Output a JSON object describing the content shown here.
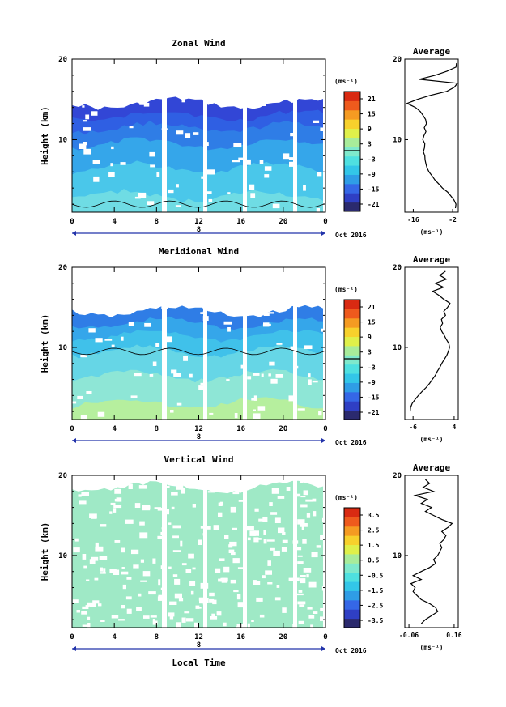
{
  "panels": [
    {
      "title": "Zonal Wind",
      "ylabel": "Height (km)",
      "ylim": [
        1,
        20
      ],
      "yticks": [
        "20",
        "10"
      ],
      "xticks": [
        "0",
        "4",
        "8",
        "12",
        "16",
        "20",
        "0"
      ],
      "day_label": "8",
      "date_label": "Oct 2016",
      "colorbar_unit": "(ms⁻¹)",
      "colorbar_ticks": [
        "21",
        "15",
        "9",
        "3",
        "-3",
        "-9",
        "-15",
        "-21"
      ],
      "profile": {
        "title": "Average",
        "xlabel": "(ms⁻¹)",
        "xticks": [
          "-16",
          "-2"
        ],
        "yticks": [
          "20",
          "10"
        ],
        "xlim": [
          -19,
          0
        ],
        "heights": [
          1.5,
          2,
          2.5,
          3,
          3.5,
          4,
          4.5,
          5,
          5.5,
          6,
          6.5,
          7,
          7.5,
          8,
          8.5,
          9,
          9.5,
          10,
          10.5,
          11,
          11.5,
          12,
          12.5,
          13,
          13.5,
          14,
          14.5,
          15,
          15.5,
          16,
          16.5,
          17,
          17.5,
          18,
          18.5,
          19,
          19.5
        ],
        "values": [
          -1,
          -0.8,
          -1.5,
          -2.6,
          -3.8,
          -5.6,
          -6.9,
          -8.3,
          -9.3,
          -10.4,
          -11.1,
          -11.5,
          -11.8,
          -11.9,
          -12.4,
          -12.0,
          -11.9,
          -12.6,
          -12.2,
          -11.5,
          -12.1,
          -11.3,
          -11.6,
          -12.5,
          -13.5,
          -15.2,
          -18.2,
          -14.5,
          -10.0,
          -4.1,
          -1.4,
          -0.3,
          -13.9,
          -8.2,
          -4.0,
          -0.8,
          -0.6
        ]
      }
    },
    {
      "title": "Meridional Wind",
      "ylabel": "Height (km)",
      "ylim": [
        1,
        20
      ],
      "yticks": [
        "20",
        "10"
      ],
      "xticks": [
        "0",
        "4",
        "8",
        "12",
        "16",
        "20",
        "0"
      ],
      "day_label": "8",
      "date_label": "Oct 2016",
      "colorbar_unit": "(ms⁻¹)",
      "colorbar_ticks": [
        "21",
        "15",
        "9",
        "3",
        "-3",
        "-9",
        "-15",
        "-21"
      ],
      "profile": {
        "title": "Average",
        "xlabel": "(ms⁻¹)",
        "xticks": [
          "-6",
          "4"
        ],
        "yticks": [
          "20",
          "10"
        ],
        "xlim": [
          -8,
          5
        ],
        "heights": [
          2,
          2.5,
          3,
          3.5,
          4,
          4.5,
          5,
          5.5,
          6,
          6.5,
          7,
          7.5,
          8,
          8.5,
          9,
          9.5,
          10,
          10.5,
          11,
          11.5,
          12,
          12.5,
          13,
          13.5,
          14,
          14.5,
          15,
          15.5,
          16,
          16.5,
          17,
          17.5,
          18,
          18.5,
          19,
          19.5
        ],
        "values": [
          -6.7,
          -6.6,
          -6.2,
          -5.5,
          -4.7,
          -3.8,
          -2.8,
          -2.0,
          -1.3,
          -0.6,
          -0.1,
          0.5,
          1.0,
          1.6,
          2.2,
          2.6,
          2.9,
          2.7,
          2.1,
          1.6,
          1.0,
          0.6,
          1.2,
          0.9,
          1.9,
          1.5,
          2.4,
          3.0,
          1.5,
          0.3,
          -1.2,
          1.4,
          -0.6,
          2.1,
          0.5,
          1.9
        ]
      }
    },
    {
      "title": "Vertical Wind",
      "ylabel": "Height (km)",
      "ylim": [
        1,
        20
      ],
      "yticks": [
        "20",
        "10"
      ],
      "xticks": [
        "0",
        "4",
        "8",
        "12",
        "16",
        "20",
        "0"
      ],
      "day_label": "8",
      "date_label": "Oct 2016",
      "xlabel": "Local Time",
      "colorbar_unit": "(ms⁻¹)",
      "colorbar_ticks": [
        "3.5",
        "2.5",
        "1.5",
        "0.5",
        "-0.5",
        "-1.5",
        "-2.5",
        "-3.5"
      ],
      "profile": {
        "title": "Average",
        "xlabel": "(ms⁻¹)",
        "xticks": [
          "-0.06",
          "0.16"
        ],
        "yticks": [
          "20",
          "10"
        ],
        "xlim": [
          -0.08,
          0.18
        ],
        "heights": [
          1.5,
          2,
          2.5,
          3,
          3.5,
          4,
          4.5,
          5,
          5.5,
          6,
          6.5,
          7,
          7.5,
          8,
          8.5,
          9,
          9.5,
          10,
          10.5,
          11,
          11.5,
          12,
          12.5,
          13,
          13.5,
          14,
          14.5,
          15,
          15.5,
          16,
          16.5,
          17,
          17.5,
          18,
          18.5,
          19,
          19.5
        ],
        "values": [
          0.0,
          0.02,
          0.05,
          0.08,
          0.07,
          0.04,
          0.0,
          -0.02,
          -0.04,
          -0.03,
          -0.05,
          0.0,
          -0.04,
          0.0,
          0.04,
          0.07,
          0.06,
          0.08,
          0.09,
          0.1,
          0.09,
          0.11,
          0.12,
          0.1,
          0.13,
          0.15,
          0.1,
          0.06,
          0.02,
          0.05,
          0.0,
          0.03,
          -0.03,
          0.06,
          0.01,
          0.04,
          0.02
        ]
      }
    }
  ],
  "colors": {
    "colorbar": [
      "#2b2a6e",
      "#2f3fc4",
      "#3567e6",
      "#2f9de6",
      "#33c6e8",
      "#4fe0e0",
      "#7fe9cc",
      "#a8ec9a",
      "#dff04a",
      "#f7d12c",
      "#f59b22",
      "#ee5a1d",
      "#d92a12"
    ],
    "zonal_layers": [
      "#3246d6",
      "#2f5fe3",
      "#2f7de6",
      "#35a6ea",
      "#4ac7ea",
      "#6fdce4"
    ],
    "meridional_layers": [
      "#2f7de6",
      "#35a6ea",
      "#40c1ea",
      "#66d6e6",
      "#8ee6d6",
      "#b6ef9e"
    ],
    "vertical_layers": [
      "#4fd6e8",
      "#7fe6d8",
      "#9fe9c6"
    ]
  }
}
